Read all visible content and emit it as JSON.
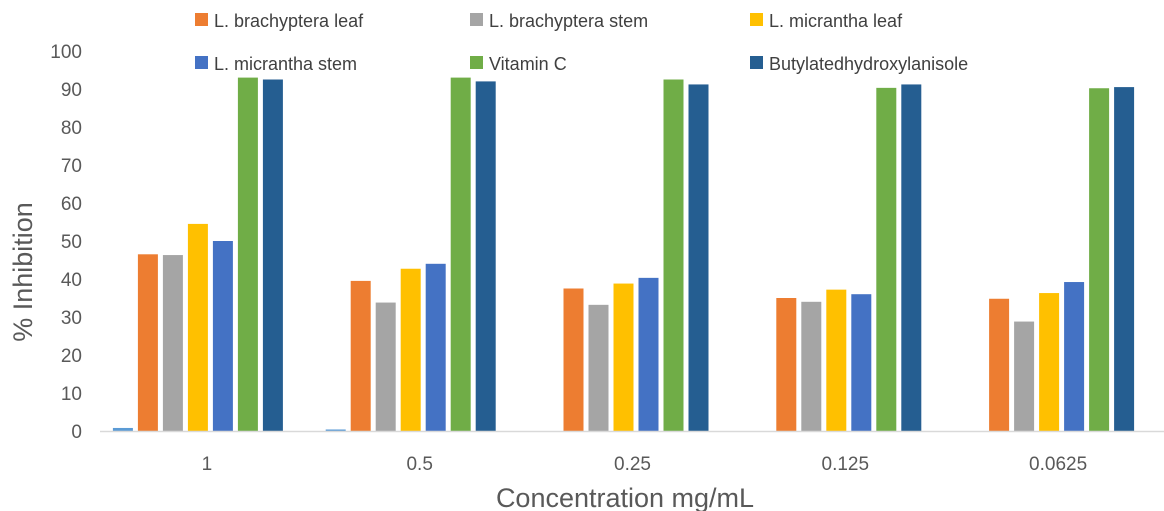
{
  "chart_data": {
    "type": "bar",
    "title": "",
    "xlabel": "Concentration mg/mL",
    "ylabel": "% Inhibition",
    "ylim": [
      0,
      100
    ],
    "yticks": [
      0,
      10,
      20,
      30,
      40,
      50,
      60,
      70,
      80,
      90,
      100
    ],
    "grid": false,
    "legend_position": "top",
    "categories": [
      "1",
      "0.5",
      "0.25",
      "0.125",
      "0.0625"
    ],
    "series": [
      {
        "name": "L. brachyptera leaf",
        "color": "#ED7D31",
        "values": [
          46.5,
          39.5,
          37.5,
          35.0,
          34.8
        ]
      },
      {
        "name": "L. brachyptera stem",
        "color": "#A5A5A5",
        "values": [
          46.3,
          33.8,
          33.2,
          34.0,
          28.8
        ]
      },
      {
        "name": "L. micrantha leaf",
        "color": "#FFC000",
        "values": [
          54.5,
          42.7,
          38.8,
          37.2,
          36.3
        ]
      },
      {
        "name": "L. micrantha stem",
        "color": "#4472C4",
        "values": [
          50.0,
          44.0,
          40.3,
          36.0,
          39.2
        ]
      },
      {
        "name": "Vitamin C",
        "color": "#70AD47",
        "values": [
          93.0,
          93.0,
          92.5,
          90.3,
          90.2
        ]
      },
      {
        "name": "Butylatedhydroxylanisole",
        "color": "#255E91",
        "values": [
          92.5,
          92.0,
          91.2,
          91.2,
          90.5
        ]
      }
    ],
    "extra_series": {
      "color": "#5B9BD5",
      "values": [
        0.8,
        0.4,
        0,
        0,
        0
      ]
    }
  }
}
